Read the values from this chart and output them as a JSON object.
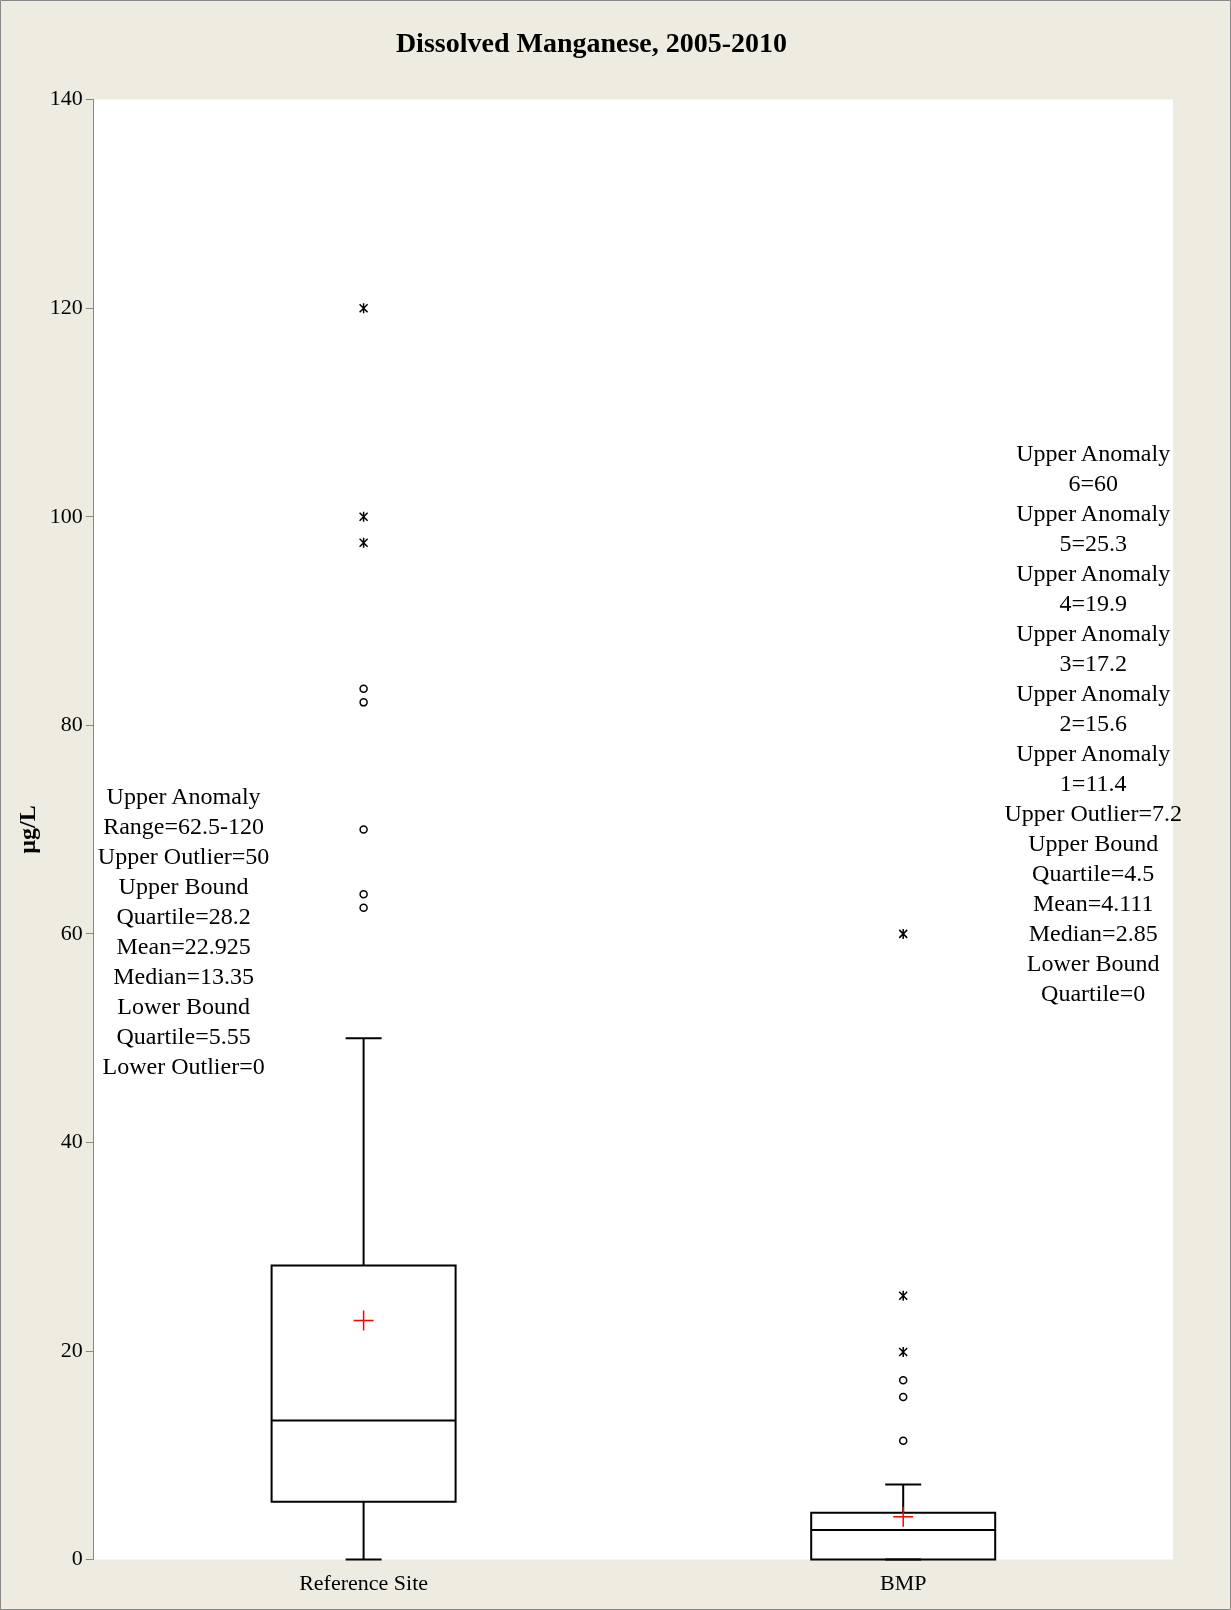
{
  "chart_data": {
    "type": "box",
    "title": "Dissolved Manganese, 2005-2010",
    "ylabel": "µg/L",
    "categories": [
      "Reference Site",
      "BMP"
    ],
    "boxes": [
      {
        "low": 0,
        "q1": 5.55,
        "median": 13.35,
        "q3": 28.2,
        "high": 50,
        "mean": 22.925,
        "outliers": [
          62.5,
          63.8,
          70,
          82.2,
          83.5,
          97.5,
          100,
          120
        ]
      },
      {
        "low": 0,
        "q1": 0,
        "median": 2.85,
        "q3": 4.5,
        "high": 7.2,
        "mean": 4.111,
        "outliers": [
          11.4,
          15.6,
          17.2,
          19.9,
          25.3,
          60
        ]
      }
    ],
    "ylim": [
      0,
      140
    ],
    "yticks": [
      0,
      20,
      40,
      60,
      80,
      100,
      120,
      140
    ],
    "grid": false,
    "legend": false,
    "annotations": [
      "Upper Anomaly\nRange=62.5-120\nUpper Outlier=50\nUpper Bound\nQuartile=28.2\nMean=22.925\nMedian=13.35\nLower Bound\nQuartile=5.55\nLower Outlier=0",
      "Upper Anomaly\n6=60\nUpper Anomaly\n5=25.3\nUpper Anomaly\n4=19.9\nUpper Anomaly\n3=17.2\nUpper Anomaly\n2=15.6\nUpper Anomaly\n1=11.4\nUpper Outlier=7.2\nUpper Bound\nQuartile=4.5\nMean=4.111\nMedian=2.85\nLower Bound\nQuartile=0"
    ]
  }
}
